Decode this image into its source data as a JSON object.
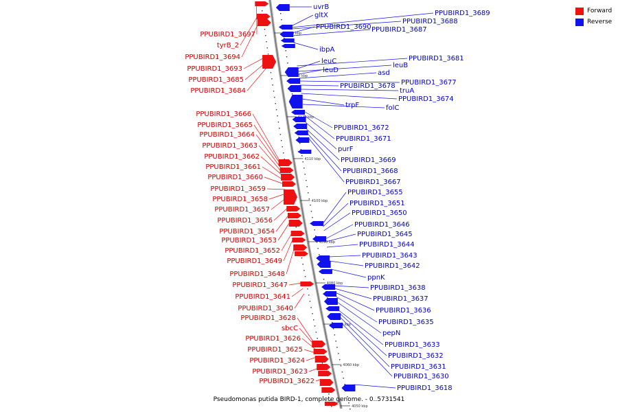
{
  "legend": {
    "items": [
      {
        "label": "Forward",
        "color": "#ee1111"
      },
      {
        "label": "Reverse",
        "color": "#1111ee"
      }
    ]
  },
  "caption": "Pseudomonas putida BIRD-1, complete genome. - 0..5731541",
  "axis": {
    "color": "#777777",
    "tick_labels": [
      "4140 kbp",
      "4130 kbp",
      "4120 kbp",
      "4110 kbp",
      "4100 kbp",
      "4090 kbp",
      "4080 kbp",
      "4070 kbp",
      "4060 kbp",
      "4050 kbp"
    ]
  },
  "forward_labels": [
    "PPUBIRD1_3697",
    "tyrB_2",
    "PPUBIRD1_3694",
    "PPUBIRD1_3693",
    "PPUBIRD1_3685",
    "PPUBIRD1_3684",
    "PPUBIRD1_3666",
    "PPUBIRD1_3665",
    "PPUBIRD1_3664",
    "PPUBIRD1_3663",
    "PPUBIRD1_3662",
    "PPUBIRD1_3661",
    "PPUBIRD1_3660",
    "PPUBIRD1_3659",
    "PPUBIRD1_3658",
    "PPUBIRD1_3657",
    "PPUBIRD1_3656",
    "PPUBIRD1_3654",
    "PPUBIRD1_3653",
    "PPUBIRD1_3652",
    "PPUBIRD1_3649",
    "PPUBIRD1_3648",
    "PPUBIRD1_3647",
    "PPUBIRD1_3641",
    "PPUBIRD1_3640",
    "PPUBIRD1_3628",
    "sbcC",
    "PPUBIRD1_3626",
    "PPUBIRD1_3625",
    "PPUBIRD1_3624",
    "PPUBIRD1_3623",
    "PPUBIRD1_3622"
  ],
  "reverse_labels": [
    "uvrB",
    "gltX",
    "PPUBIRD1_3689",
    "PPUBIRD1_3688",
    "PPUBIRD1_3690",
    "PPUBIRD1_3687",
    "ibpA",
    "PPUBIRD1_3681",
    "leuC",
    "leuB",
    "leuD",
    "asd",
    "PPUBIRD1_3677",
    "PPUBIRD1_3678",
    "truA",
    "PPUBIRD1_3674",
    "trpF",
    "folC",
    "PPUBIRD1_3672",
    "PPUBIRD1_3671",
    "purF",
    "PPUBIRD1_3669",
    "PPUBIRD1_3668",
    "PPUBIRD1_3667",
    "PPUBIRD1_3655",
    "PPUBIRD1_3651",
    "PPUBIRD1_3650",
    "PPUBIRD1_3646",
    "PPUBIRD1_3645",
    "PPUBIRD1_3644",
    "PPUBIRD1_3643",
    "PPUBIRD1_3642",
    "ppnK",
    "PPUBIRD1_3638",
    "PPUBIRD1_3637",
    "PPUBIRD1_3636",
    "PPUBIRD1_3635",
    "pepN",
    "PPUBIRD1_3633",
    "PPUBIRD1_3632",
    "PPUBIRD1_3631",
    "PPUBIRD1_3630",
    "PPUBIRD1_3618"
  ]
}
